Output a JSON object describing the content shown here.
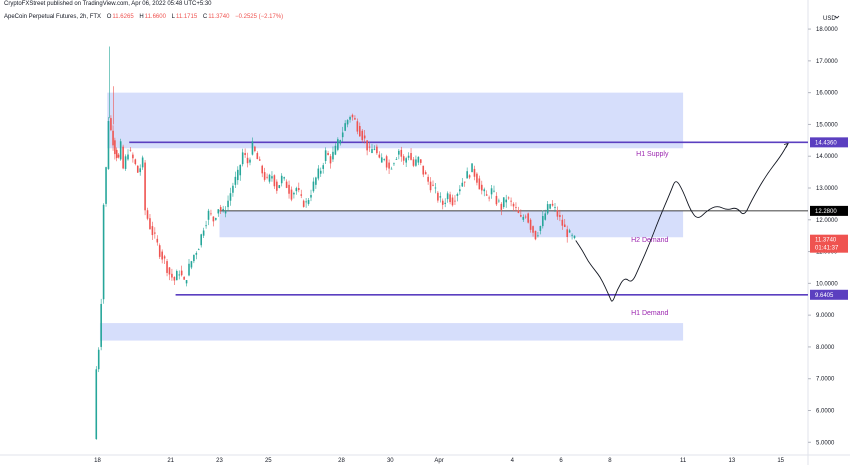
{
  "header": {
    "publisher": "CryptoFXStreet published on TradingView.com, Apr 06, 2022 05:48 UTC+5:30",
    "symbol": "ApeCoin Perpetual Futures, 2h, FTX",
    "o_label": "O",
    "o_value": "11.6265",
    "h_label": "H",
    "h_value": "11.6600",
    "l_label": "L",
    "l_value": "11.1715",
    "c_label": "C",
    "c_value": "11.3740",
    "change": "−0.2525 (−2.17%)"
  },
  "axis": {
    "currency": "USD",
    "currency_icon": "chevron-down-icon"
  },
  "colors": {
    "up": "#26a69a",
    "down": "#ef5350",
    "zone": "#d6defb",
    "level_line": "#5b3fc0",
    "mid_line": "#000000",
    "label_text": "#9c27b0",
    "badge": "#5b3fc0",
    "badge_mid": "#000000",
    "price_badge": "#ef5350"
  },
  "chart_data": {
    "type": "candlestick",
    "title": "",
    "ylim": [
      4.6,
      18.6
    ],
    "y_ticks": [
      {
        "value": 5,
        "label": "5.0000"
      },
      {
        "value": 6,
        "label": "6.0000"
      },
      {
        "value": 7,
        "label": "7.0000"
      },
      {
        "value": 8,
        "label": "8.0000"
      },
      {
        "value": 9,
        "label": "9.0000"
      },
      {
        "value": 10,
        "label": "10.0000"
      },
      {
        "value": 11,
        "label": "11.0000"
      },
      {
        "value": 12,
        "label": "12.0000"
      },
      {
        "value": 13,
        "label": "13.0000"
      },
      {
        "value": 14,
        "label": "14.0000"
      },
      {
        "value": 15,
        "label": "15.0000"
      },
      {
        "value": 16,
        "label": "16.0000"
      },
      {
        "value": 17,
        "label": "17.0000"
      },
      {
        "value": 18,
        "label": "18.0000"
      }
    ],
    "x_ticks": [
      {
        "label": "18",
        "day": 0
      },
      {
        "label": "21",
        "day": 3
      },
      {
        "label": "23",
        "day": 5
      },
      {
        "label": "25",
        "day": 7
      },
      {
        "label": "28",
        "day": 10
      },
      {
        "label": "30",
        "day": 12
      },
      {
        "label": "Apr",
        "day": 14
      },
      {
        "label": "4",
        "day": 17
      },
      {
        "label": "6",
        "day": 19
      },
      {
        "label": "8",
        "day": 21
      },
      {
        "label": "11",
        "day": 24
      },
      {
        "label": "13",
        "day": 26
      },
      {
        "label": "15",
        "day": 28
      }
    ],
    "price_path": [
      [
        -0.1,
        5.1
      ],
      [
        0.0,
        7.3
      ],
      [
        0.1,
        8.0
      ],
      [
        0.2,
        9.5
      ],
      [
        0.3,
        12.5
      ],
      [
        0.4,
        13.6
      ],
      [
        0.5,
        15.2
      ],
      [
        0.6,
        14.8
      ],
      [
        0.75,
        14.2
      ],
      [
        0.9,
        13.9
      ],
      [
        1.0,
        14.3
      ],
      [
        1.1,
        13.6
      ],
      [
        1.3,
        14.2
      ],
      [
        1.5,
        13.9
      ],
      [
        1.7,
        13.5
      ],
      [
        1.9,
        13.8
      ],
      [
        2.0,
        12.3
      ],
      [
        2.2,
        11.8
      ],
      [
        2.4,
        11.4
      ],
      [
        2.6,
        11.0
      ],
      [
        2.8,
        10.7
      ],
      [
        3.0,
        10.3
      ],
      [
        3.2,
        10.1
      ],
      [
        3.4,
        10.4
      ],
      [
        3.6,
        10.0
      ],
      [
        3.8,
        10.5
      ],
      [
        4.0,
        10.9
      ],
      [
        4.2,
        11.2
      ],
      [
        4.4,
        11.8
      ],
      [
        4.6,
        12.2
      ],
      [
        4.8,
        12.0
      ],
      [
        5.0,
        12.4
      ],
      [
        5.2,
        12.2
      ],
      [
        5.4,
        12.6
      ],
      [
        5.6,
        13.1
      ],
      [
        5.8,
        13.4
      ],
      [
        6.0,
        14.1
      ],
      [
        6.2,
        13.8
      ],
      [
        6.4,
        14.3
      ],
      [
        6.6,
        13.9
      ],
      [
        6.8,
        13.5
      ],
      [
        7.0,
        13.2
      ],
      [
        7.2,
        13.4
      ],
      [
        7.4,
        13.0
      ],
      [
        7.6,
        13.3
      ],
      [
        7.8,
        13.1
      ],
      [
        8.0,
        12.8
      ],
      [
        8.2,
        13.0
      ],
      [
        8.4,
        12.6
      ],
      [
        8.6,
        12.5
      ],
      [
        8.8,
        12.9
      ],
      [
        9.0,
        13.3
      ],
      [
        9.2,
        13.6
      ],
      [
        9.4,
        14.1
      ],
      [
        9.6,
        13.9
      ],
      [
        9.8,
        14.2
      ],
      [
        10.0,
        14.6
      ],
      [
        10.2,
        15.0
      ],
      [
        10.4,
        15.3
      ],
      [
        10.6,
        15.1
      ],
      [
        10.8,
        14.8
      ],
      [
        11.0,
        14.5
      ],
      [
        11.2,
        14.1
      ],
      [
        11.4,
        14.3
      ],
      [
        11.6,
        13.8
      ],
      [
        11.8,
        14.0
      ],
      [
        12.0,
        13.6
      ],
      [
        12.2,
        13.9
      ],
      [
        12.4,
        14.2
      ],
      [
        12.6,
        13.8
      ],
      [
        12.8,
        14.1
      ],
      [
        13.0,
        13.7
      ],
      [
        13.2,
        13.9
      ],
      [
        13.4,
        13.5
      ],
      [
        13.6,
        13.2
      ],
      [
        13.8,
        13.0
      ],
      [
        14.0,
        12.7
      ],
      [
        14.2,
        12.5
      ],
      [
        14.4,
        12.8
      ],
      [
        14.6,
        12.6
      ],
      [
        14.8,
        12.9
      ],
      [
        15.0,
        13.2
      ],
      [
        15.2,
        13.4
      ],
      [
        15.4,
        13.6
      ],
      [
        15.6,
        13.3
      ],
      [
        15.8,
        12.9
      ],
      [
        16.0,
        12.7
      ],
      [
        16.2,
        12.9
      ],
      [
        16.4,
        12.6
      ],
      [
        16.6,
        12.4
      ],
      [
        16.8,
        12.7
      ],
      [
        17.0,
        12.5
      ],
      [
        17.2,
        12.3
      ],
      [
        17.4,
        12.0
      ],
      [
        17.6,
        12.2
      ],
      [
        17.8,
        11.8
      ],
      [
        18.0,
        11.5
      ],
      [
        18.2,
        11.8
      ],
      [
        18.4,
        12.2
      ],
      [
        18.6,
        12.5
      ],
      [
        18.8,
        12.3
      ],
      [
        19.0,
        12.0
      ],
      [
        19.2,
        11.7
      ],
      [
        19.4,
        11.5
      ],
      [
        19.6,
        11.35
      ]
    ],
    "zones": [
      {
        "name": "H1 Supply",
        "top": 16.0,
        "bottom": 14.25,
        "day_start": 0.4,
        "day_end": 24.0
      },
      {
        "name": "H2 Demand",
        "top": 12.28,
        "bottom": 11.45,
        "day_start": 5.0,
        "day_end": 24.0
      },
      {
        "name": "H1 Demand",
        "top": 8.75,
        "bottom": 8.2,
        "day_start": 0.1,
        "day_end": 24.0
      }
    ],
    "zone_labels": [
      {
        "text": "H1 Supply",
        "value": 14.0,
        "day": 23.4
      },
      {
        "text": "H2 Demand",
        "value": 11.3,
        "day": 23.4
      },
      {
        "text": "H1 Demand",
        "value": 9.0,
        "day": 23.4
      }
    ],
    "levels": [
      {
        "value": 14.436,
        "label": "14.4360",
        "day_start": 1.3,
        "kind": "level"
      },
      {
        "value": 12.28,
        "label": "12.2800",
        "day_start": 5.0,
        "kind": "mid"
      },
      {
        "value": 9.6405,
        "label": "9.6405",
        "day_start": 3.2,
        "kind": "level"
      }
    ],
    "last_price": {
      "value": 11.374,
      "label": "11.3740",
      "countdown": "01:41:37"
    },
    "projection": [
      [
        19.6,
        11.35
      ],
      [
        19.9,
        11.0
      ],
      [
        20.1,
        10.7
      ],
      [
        20.4,
        10.4
      ],
      [
        20.6,
        10.2
      ],
      [
        20.8,
        9.9
      ],
      [
        21.0,
        9.55
      ],
      [
        21.1,
        9.38
      ],
      [
        21.3,
        9.8
      ],
      [
        21.6,
        10.2
      ],
      [
        21.9,
        10.0
      ],
      [
        22.2,
        10.5
      ],
      [
        22.6,
        11.2
      ],
      [
        23.0,
        12.0
      ],
      [
        23.5,
        12.9
      ],
      [
        23.7,
        13.3
      ],
      [
        24.0,
        12.9
      ],
      [
        24.3,
        12.3
      ],
      [
        24.6,
        12.0
      ],
      [
        25.0,
        12.3
      ],
      [
        25.4,
        12.45
      ],
      [
        25.8,
        12.3
      ],
      [
        26.2,
        12.4
      ],
      [
        26.5,
        12.1
      ],
      [
        26.8,
        12.6
      ],
      [
        27.4,
        13.4
      ],
      [
        28.0,
        14.0
      ],
      [
        28.3,
        14.4
      ]
    ]
  }
}
